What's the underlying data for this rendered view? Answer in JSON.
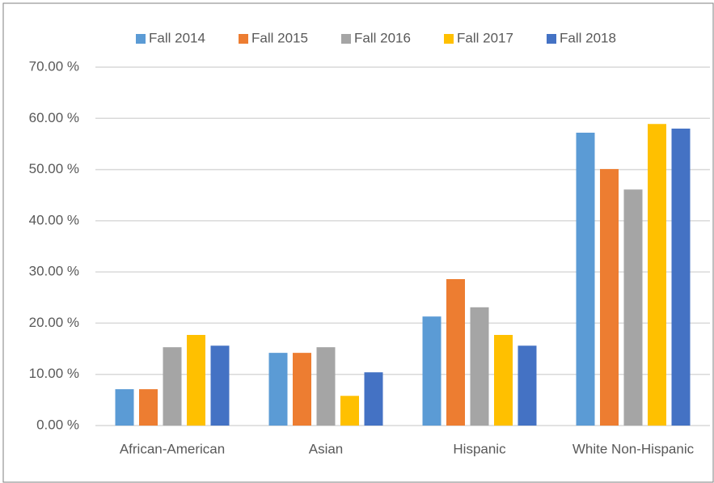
{
  "chart_data": {
    "type": "bar",
    "categories": [
      "African-American",
      "Asian",
      "Hispanic",
      "White Non-Hispanic"
    ],
    "series": [
      {
        "name": "Fall 2014",
        "color": "#5b9bd5",
        "values": [
          7.1,
          14.2,
          21.3,
          57.2
        ]
      },
      {
        "name": "Fall 2015",
        "color": "#ed7d31",
        "values": [
          7.1,
          14.2,
          28.6,
          50.1
        ]
      },
      {
        "name": "Fall 2016",
        "color": "#a5a5a5",
        "values": [
          15.3,
          15.3,
          23.1,
          46.1
        ]
      },
      {
        "name": "Fall 2017",
        "color": "#ffc000",
        "values": [
          17.7,
          5.8,
          17.7,
          58.9
        ]
      },
      {
        "name": "Fall 2018",
        "color": "#4472c4",
        "values": [
          15.6,
          10.4,
          15.6,
          58.0
        ]
      }
    ],
    "ylim": [
      0,
      70
    ],
    "yticks": [
      {
        "value": 0,
        "label": "0.00 %"
      },
      {
        "value": 10,
        "label": "10.00 %"
      },
      {
        "value": 20,
        "label": "20.00 %"
      },
      {
        "value": 30,
        "label": "30.00 %"
      },
      {
        "value": 40,
        "label": "40.00 %"
      },
      {
        "value": 50,
        "label": "50.00 %"
      },
      {
        "value": 60,
        "label": "60.00 %"
      },
      {
        "value": 70,
        "label": "70.00 %"
      }
    ],
    "grid": true,
    "legend": "top"
  }
}
